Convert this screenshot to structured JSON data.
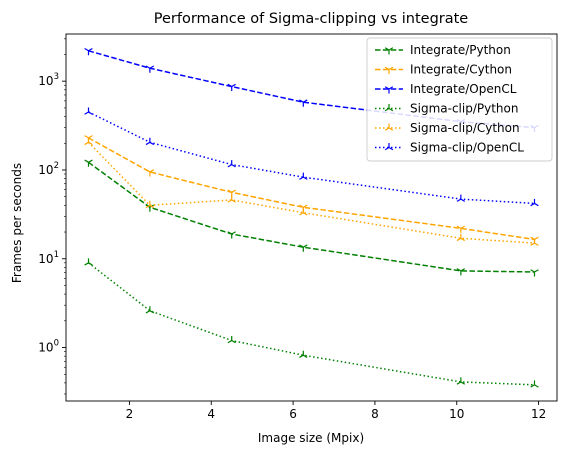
{
  "chart_data": {
    "type": "line",
    "title": "Performance of Sigma-clipping vs integrate",
    "xlabel": "Image size (Mpix)",
    "ylabel": "Frames per seconds",
    "xlim": [
      0.45,
      12.45
    ],
    "ylim": [
      0.25,
      3400
    ],
    "yscale": "log",
    "x_ticks": [
      2,
      4,
      6,
      8,
      10,
      12
    ],
    "y_ticks": [
      {
        "value": 1,
        "base": "10",
        "exp": "0"
      },
      {
        "value": 10,
        "base": "10",
        "exp": "1"
      },
      {
        "value": 100,
        "base": "10",
        "exp": "2"
      },
      {
        "value": 1000,
        "base": "10",
        "exp": "3"
      }
    ],
    "legend_position": "top-right",
    "x": [
      1.0,
      2.5,
      4.5,
      6.25,
      10.1,
      11.9
    ],
    "series": [
      {
        "name": "Integrate/Python",
        "color": "#008000",
        "dash": "dashed",
        "marker": "tri-down",
        "values": [
          122,
          38,
          19,
          13.5,
          7.3,
          7.1
        ]
      },
      {
        "name": "Integrate/Cython",
        "color": "#FFA500",
        "dash": "dashed",
        "marker": "tri-down",
        "values": [
          230,
          95,
          56,
          38,
          22,
          16.5
        ]
      },
      {
        "name": "Integrate/OpenCL",
        "color": "#0000FF",
        "dash": "dashed",
        "marker": "tri-down",
        "values": [
          2200,
          1400,
          870,
          580,
          350,
          300
        ]
      },
      {
        "name": "Sigma-clip/Python",
        "color": "#008000",
        "dash": "dotted",
        "marker": "tri-up",
        "values": [
          9.0,
          2.6,
          1.2,
          0.82,
          0.41,
          0.38
        ]
      },
      {
        "name": "Sigma-clip/Cython",
        "color": "#FFA500",
        "dash": "dotted",
        "marker": "tri-up",
        "values": [
          205,
          40,
          46,
          33,
          17,
          15
        ]
      },
      {
        "name": "Sigma-clip/OpenCL",
        "color": "#0000FF",
        "dash": "dotted",
        "marker": "tri-up",
        "values": [
          450,
          205,
          115,
          83,
          47,
          42
        ]
      }
    ]
  }
}
